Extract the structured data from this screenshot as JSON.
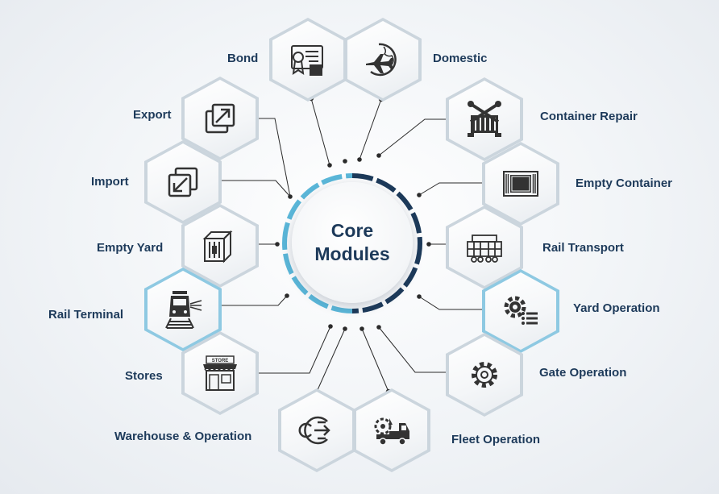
{
  "center": {
    "line1": "Core",
    "line2": "Modules"
  },
  "modules": {
    "bond": "Bond",
    "domestic": "Domestic",
    "export": "Export",
    "import": "Import",
    "empty_yard": "Empty Yard",
    "rail_terminal": "Rail Terminal",
    "stores": "Stores",
    "warehouse": "Warehouse & Operation",
    "fleet": "Fleet Operation",
    "container_repair": "Container Repair",
    "empty_container": "Empty Container",
    "rail_transport": "Rail Transport",
    "yard_operation": "Yard Operation",
    "gate_operation": "Gate Operation"
  },
  "icon_text": {
    "store_sign": "STORE"
  },
  "colors": {
    "text": "#1d3a5a",
    "ring_dark": "#1d3a5a",
    "ring_light": "#5bb7d9",
    "hex_border": "#cbd5dd",
    "hex_accent": "#8ec9e2",
    "icon": "#333333"
  },
  "icons": {
    "bond": "certificate-icon",
    "domestic": "plane-globe-icon",
    "export": "export-arrow-icon",
    "import": "import-arrow-icon",
    "empty_yard": "container-icon",
    "rail_terminal": "train-icon",
    "stores": "store-icon",
    "warehouse": "process-cycle-icon",
    "fleet": "tow-truck-icon",
    "container_repair": "repair-tools-icon",
    "empty_container": "empty-container-icon",
    "rail_transport": "rail-car-icon",
    "yard_operation": "gear-list-icon",
    "gate_operation": "gear-icon"
  }
}
